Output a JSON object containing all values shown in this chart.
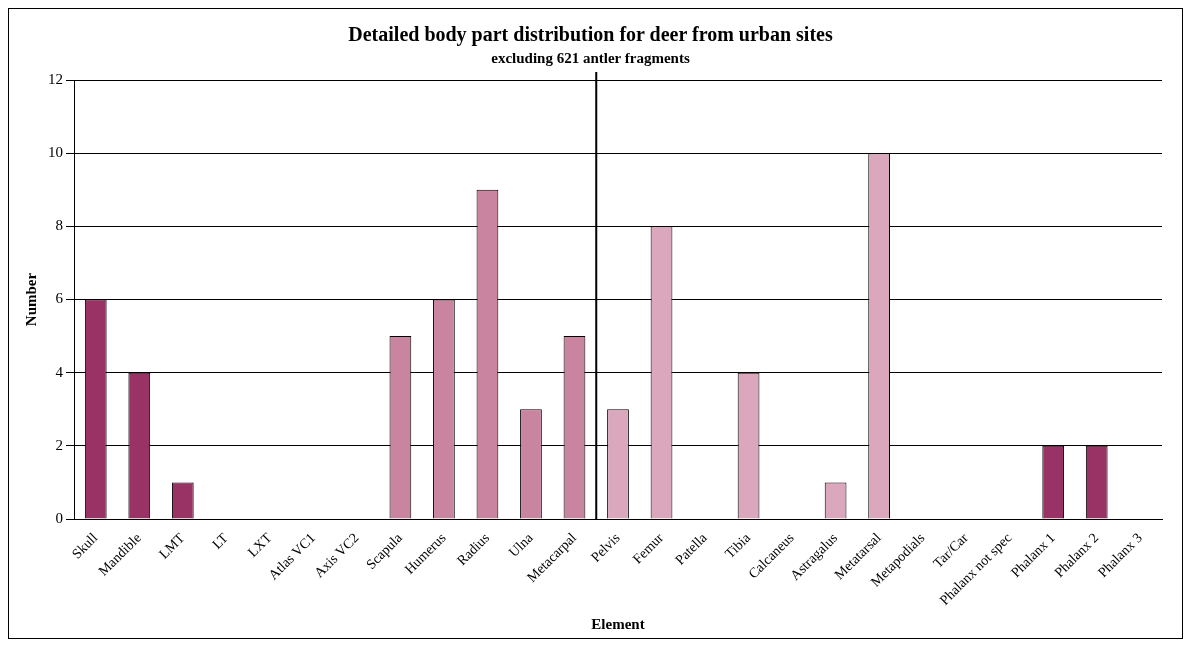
{
  "chart_data": {
    "type": "bar",
    "title": "Detailed body part distribution for deer from urban sites",
    "subtitle": "excluding 621 antler fragments",
    "xlabel": "Element",
    "ylabel": "Number",
    "categories": [
      "Skull",
      "Mandible",
      "LMT",
      "LT",
      "LXT",
      "Atlas VC1",
      "Axis VC2",
      "Scapula",
      "Humerus",
      "Radius",
      "Ulna",
      "Metacarpal",
      "Pelvis",
      "Femur",
      "Patella",
      "Tibia",
      "Calcaneus",
      "Astragalus",
      "Metatarsal",
      "Metapodials",
      "Tar/Car",
      "Phalanx not spec",
      "Phalanx 1",
      "Phalanx 2",
      "Phalanx 3"
    ],
    "values": [
      6,
      4,
      1,
      0,
      0,
      0,
      0,
      5,
      6,
      9,
      3,
      5,
      3,
      8,
      0,
      4,
      0,
      1,
      10,
      0,
      0,
      0,
      2,
      2,
      0
    ],
    "colors": [
      "#993366",
      "#993366",
      "#993366",
      "#993366",
      "#993366",
      "#993366",
      "#993366",
      "#c9849f",
      "#c9849f",
      "#c9849f",
      "#c9849f",
      "#c9849f",
      "#dba7bd",
      "#dba7bd",
      "#dba7bd",
      "#dba7bd",
      "#dba7bd",
      "#dba7bd",
      "#dba7bd",
      "#993366",
      "#993366",
      "#993366",
      "#993366",
      "#993366",
      "#993366"
    ],
    "ylim": [
      0,
      12
    ],
    "yticks": [
      0,
      2,
      4,
      6,
      8,
      10,
      12
    ],
    "grid": "y",
    "legend": false,
    "ref_lines": [
      {
        "axis": "x",
        "value": "Pelvis",
        "color": "#000000"
      }
    ]
  }
}
